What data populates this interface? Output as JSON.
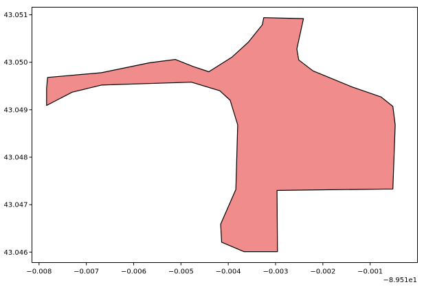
{
  "chart_data": {
    "type": "polygon",
    "title": "",
    "xlabel": "",
    "ylabel": "",
    "x_offset_label": "−8.951e1",
    "x_offset": -89.51,
    "xlim": [
      -0.00815,
      0.0
    ],
    "ylim": [
      43.04578,
      43.05116
    ],
    "x_ticks": [
      -0.008,
      -0.007,
      -0.006,
      -0.005,
      -0.004,
      -0.003,
      -0.002,
      -0.001
    ],
    "x_tick_labels": [
      "−0.008",
      "−0.007",
      "−0.006",
      "−0.005",
      "−0.004",
      "−0.003",
      "−0.002",
      "−0.001"
    ],
    "y_ticks": [
      43.046,
      43.047,
      43.048,
      43.049,
      43.05,
      43.051
    ],
    "y_tick_labels": [
      "43.046",
      "43.047",
      "43.048",
      "43.049",
      "43.050",
      "43.051"
    ],
    "fill_color": "#f08c8c",
    "edge_color": "#000000",
    "grid": false,
    "vertices": [
      [
        -0.00782,
        43.04968
      ],
      [
        -0.00668,
        43.04978
      ],
      [
        -0.00566,
        43.04999
      ],
      [
        -0.00512,
        43.05006
      ],
      [
        -0.00474,
        43.04991
      ],
      [
        -0.00441,
        43.0498
      ],
      [
        -0.00392,
        43.05011
      ],
      [
        -0.00358,
        43.05042
      ],
      [
        -0.00328,
        43.05079
      ],
      [
        -0.00325,
        43.05094
      ],
      [
        -0.00241,
        43.05092
      ],
      [
        -0.00255,
        43.05028
      ],
      [
        -0.00251,
        43.05005
      ],
      [
        -0.00221,
        43.04982
      ],
      [
        -0.00138,
        43.04948
      ],
      [
        -0.00077,
        43.04927
      ],
      [
        -0.00052,
        43.04907
      ],
      [
        -0.00047,
        43.04868
      ],
      [
        -0.00052,
        43.04733
      ],
      [
        -0.00297,
        43.0473
      ],
      [
        -0.00296,
        43.04601
      ],
      [
        -0.00367,
        43.04601
      ],
      [
        -0.00414,
        43.04621
      ],
      [
        -0.00416,
        43.04659
      ],
      [
        -0.00384,
        43.04732
      ],
      [
        -0.0038,
        43.04868
      ],
      [
        -0.00396,
        43.0492
      ],
      [
        -0.00418,
        43.0494
      ],
      [
        -0.00478,
        43.04958
      ],
      [
        -0.00668,
        43.04952
      ],
      [
        -0.0073,
        43.04937
      ],
      [
        -0.00784,
        43.04909
      ],
      [
        -0.00784,
        43.04945
      ]
    ]
  }
}
